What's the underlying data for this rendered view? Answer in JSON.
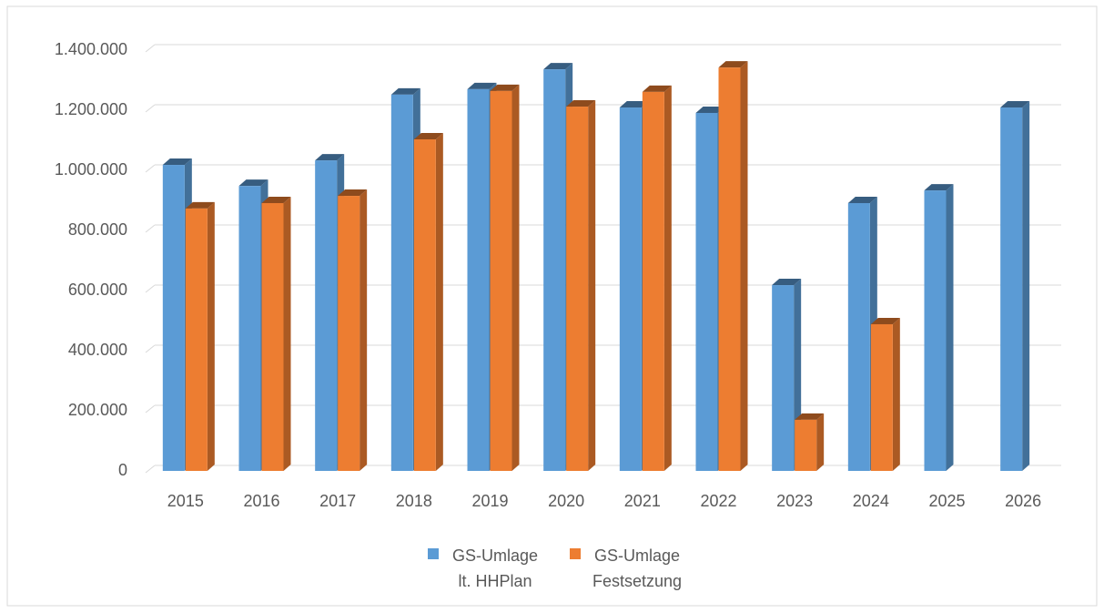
{
  "chart_data": {
    "type": "bar3d",
    "categories": [
      "2015",
      "2016",
      "2017",
      "2018",
      "2019",
      "2020",
      "2021",
      "2022",
      "2023",
      "2024",
      "2025",
      "2026"
    ],
    "series": [
      {
        "name": "GS-Umlage lt. HHPlan",
        "color": "#5b9bd5",
        "values": [
          1018000,
          948000,
          1033000,
          1252000,
          1270000,
          1336000,
          1209000,
          1191000,
          618000,
          891000,
          933000,
          1209000
        ]
      },
      {
        "name": "GS-Umlage Festsetzung",
        "color": "#ed7d31",
        "values": [
          873000,
          891000,
          915000,
          1103000,
          1264000,
          1212000,
          1261000,
          1342000,
          170000,
          488000,
          null,
          null
        ]
      }
    ],
    "ylim": [
      0,
      1400000
    ],
    "yticks": [
      0,
      {
        "value": 200000,
        "label": "200.000"
      },
      {
        "value": 400000,
        "label": "400.000"
      },
      {
        "value": 600000,
        "label": "600.000"
      },
      {
        "value": 800000,
        "label": "800.000"
      },
      {
        "value": 1000000,
        "label": "1.000.000"
      },
      {
        "value": 1200000,
        "label": "1.200.000"
      },
      {
        "value": 1400000,
        "label": "1.400.000"
      }
    ],
    "grid": true,
    "legend": "bottom"
  }
}
